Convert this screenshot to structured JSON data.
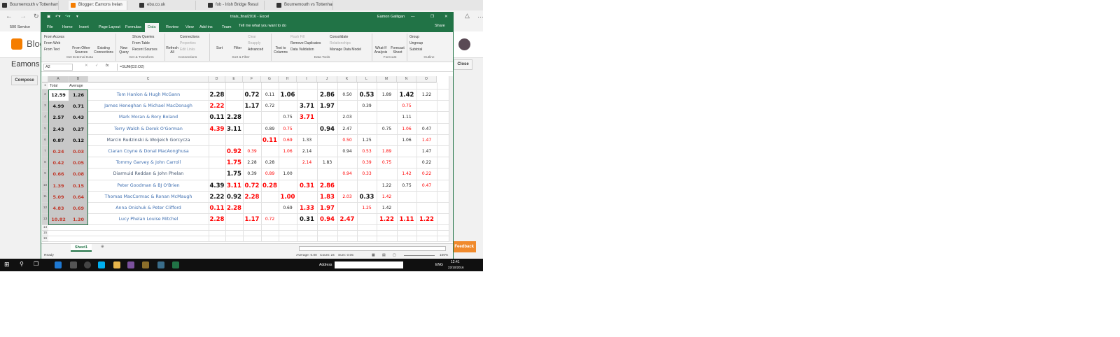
{
  "browser": {
    "tabs": [
      "Bournemouth v Tottenham",
      "Blogger: Eamons Irelan",
      "ebu.co.uk",
      "fob - Irish Bridge Resul",
      "Bournemouth vs Tottenham"
    ],
    "active_tab": 1,
    "favorites": "500 Service",
    "blog_title": "Blogger",
    "blog_name": "Eamons I",
    "compose": "Compose",
    "close": "Close",
    "feedback": "Feedback"
  },
  "excel": {
    "title": "trials_final2016  -  Excel",
    "user": "Eamon Galligan",
    "share": "Share",
    "tell_me": "Tell me what you want to do",
    "tabs": [
      "File",
      "Home",
      "Insert",
      "Page Layout",
      "Formulas",
      "Data",
      "Review",
      "View",
      "Add-ins",
      "Team"
    ],
    "active_tab": "Data",
    "ribbon": {
      "get_external": [
        "From Access",
        "From Web",
        "From Text"
      ],
      "from_other": "From Other Sources",
      "existing": "Existing Connections",
      "new_query": "New Query",
      "transform": [
        "Show Queries",
        "From Table",
        "Recent Sources"
      ],
      "refresh": "Refresh All",
      "connections": [
        "Connections",
        "Properties",
        "Edit Links"
      ],
      "sort": "Sort",
      "filter": "Filter",
      "filter_opts": [
        "Clear",
        "Reapply",
        "Advanced"
      ],
      "text_to_columns": "Text to Columns",
      "data_tools": [
        "Flash Fill",
        "Remove Duplicates",
        "Data Validation"
      ],
      "data_tools2": [
        "Consolidate",
        "Relationships",
        "Manage Data Model"
      ],
      "what_if": "What-If Analysis",
      "forecast_sheet": "Forecast Sheet",
      "outline": [
        "Group",
        "Ungroup",
        "Subtotal"
      ],
      "groups": [
        "Get External Data",
        "Get & Transform",
        "Connections",
        "Sort & Filter",
        "Data Tools",
        "Forecast",
        "Outline"
      ]
    },
    "name_box": "A2",
    "formula": "=SUM(D2:O2)",
    "columns": [
      "A",
      "B",
      "C",
      "D",
      "E",
      "F",
      "G",
      "H",
      "I",
      "J",
      "K",
      "L",
      "M",
      "N",
      "O"
    ],
    "header_row": {
      "A": "Total",
      "B": "Average"
    },
    "rows": [
      {
        "total": "12.59",
        "avg": "1.26",
        "name": "Tom Hanlon & Hugh McGann",
        "cells": [
          [
            "2.28",
            "B"
          ],
          null,
          [
            "0.72",
            "B"
          ],
          [
            "0.11",
            "b"
          ],
          [
            "1.06",
            "B"
          ],
          null,
          [
            "2.86",
            "B"
          ],
          [
            "0.50",
            "b"
          ],
          [
            "0.53",
            "B"
          ],
          [
            "1.89",
            "b"
          ],
          [
            "1.42",
            "B"
          ],
          [
            "1.22",
            "b"
          ]
        ]
      },
      {
        "total": "4.99",
        "avg": "0.71",
        "name": "James Heneghan & Michael MacDonagh",
        "cells": [
          [
            "2.22",
            "R"
          ],
          null,
          [
            "1.17",
            "B"
          ],
          [
            "0.72",
            "b"
          ],
          null,
          [
            "3.71",
            "B"
          ],
          [
            "1.97",
            "B"
          ],
          null,
          [
            "0.39",
            "b"
          ],
          null,
          [
            "0.75",
            "r"
          ],
          null
        ]
      },
      {
        "total": "2.57",
        "avg": "0.43",
        "name": "Mark Moran & Rory Boland",
        "cells": [
          [
            "0.11",
            "B"
          ],
          [
            "2.28",
            "B"
          ],
          null,
          null,
          [
            "0.75",
            "b"
          ],
          [
            "3.71",
            "R"
          ],
          null,
          [
            "2.03",
            "b"
          ],
          null,
          null,
          [
            "1.11",
            "b"
          ],
          null
        ]
      },
      {
        "total": "2.43",
        "avg": "0.27",
        "name": "Terry Walsh & Derek O'Gorman",
        "cells": [
          [
            "4.39",
            "R"
          ],
          [
            "3.11",
            "B"
          ],
          null,
          [
            "0.89",
            "b"
          ],
          [
            "0.75",
            "r"
          ],
          null,
          [
            "0.94",
            "B"
          ],
          [
            "2.47",
            "b"
          ],
          null,
          [
            "0.75",
            "b"
          ],
          [
            "1.06",
            "r"
          ],
          [
            "0.47",
            "b"
          ]
        ]
      },
      {
        "total": "0.87",
        "avg": "0.12",
        "name": "Marcin Rudzinski & Woijeich Gorcycza",
        "cells": [
          null,
          null,
          null,
          [
            "0.11",
            "R"
          ],
          [
            "0.69",
            "r"
          ],
          [
            "1.33",
            "b"
          ],
          null,
          [
            "0.50",
            "r"
          ],
          [
            "1.25",
            "b"
          ],
          null,
          [
            "1.06",
            "b"
          ],
          [
            "1.47",
            "r"
          ]
        ]
      },
      {
        "total": "0.24",
        "avg": "0.03",
        "name": "Ciaran Coyne & Donal MacAonghusa",
        "cells": [
          null,
          [
            "0.92",
            "R"
          ],
          [
            "0.39",
            "r"
          ],
          null,
          [
            "1.06",
            "r"
          ],
          [
            "2.14",
            "b"
          ],
          null,
          [
            "0.94",
            "b"
          ],
          [
            "0.53",
            "r"
          ],
          [
            "1.89",
            "r"
          ],
          null,
          [
            "1.47",
            "b"
          ]
        ]
      },
      {
        "total": "0.42",
        "avg": "0.05",
        "name": "Tommy Garvey & John Carroll",
        "cells": [
          null,
          [
            "1.75",
            "R"
          ],
          [
            "2.28",
            "b"
          ],
          [
            "0.28",
            "b"
          ],
          null,
          [
            "2.14",
            "r"
          ],
          [
            "1.83",
            "b"
          ],
          null,
          [
            "0.39",
            "r"
          ],
          [
            "0.75",
            "r"
          ],
          null,
          [
            "0.22",
            "b"
          ]
        ]
      },
      {
        "total": "0.66",
        "avg": "0.08",
        "name": "Diarmuid Reddan & John Phelan",
        "cells": [
          null,
          [
            "1.75",
            "B"
          ],
          [
            "0.39",
            "b"
          ],
          [
            "0.89",
            "r"
          ],
          [
            "1.00",
            "b"
          ],
          null,
          null,
          [
            "0.94",
            "r"
          ],
          [
            "0.33",
            "r"
          ],
          null,
          [
            "1.42",
            "r"
          ],
          [
            "0.22",
            "r"
          ]
        ]
      },
      {
        "total": "1.39",
        "avg": "0.15",
        "name": "Peter Goodman & BJ O'Brien",
        "cells": [
          [
            "4.39",
            "B"
          ],
          [
            "3.11",
            "R"
          ],
          [
            "0.72",
            "R"
          ],
          [
            "0.28",
            "R"
          ],
          null,
          [
            "0.31",
            "R"
          ],
          [
            "2.86",
            "R"
          ],
          null,
          null,
          [
            "1.22",
            "b"
          ],
          [
            "0.75",
            "b"
          ],
          [
            "0.47",
            "r"
          ]
        ]
      },
      {
        "total": "5.09",
        "avg": "0.64",
        "name": "Thomas MacCormac & Ronan McMaugh",
        "cells": [
          [
            "2.22",
            "B"
          ],
          [
            "0.92",
            "B"
          ],
          [
            "2.28",
            "R"
          ],
          null,
          [
            "1.00",
            "R"
          ],
          null,
          [
            "1.83",
            "R"
          ],
          [
            "2.03",
            "r"
          ],
          [
            "0.33",
            "B"
          ],
          [
            "1.42",
            "r"
          ],
          null,
          null
        ]
      },
      {
        "total": "4.83",
        "avg": "0.69",
        "name": "Anna Onishuk & Peter Clifford",
        "cells": [
          [
            "0.11",
            "R"
          ],
          [
            "2.28",
            "R"
          ],
          null,
          null,
          [
            "0.69",
            "b"
          ],
          [
            "1.33",
            "R"
          ],
          [
            "1.97",
            "R"
          ],
          null,
          [
            "1.25",
            "r"
          ],
          [
            "1.42",
            "b"
          ],
          null,
          null
        ]
      },
      {
        "total": "10.82",
        "avg": "1.20",
        "name": "Lucy Phelan Louise Mitchel",
        "cells": [
          [
            "2.28",
            "R"
          ],
          null,
          [
            "1.17",
            "R"
          ],
          [
            "0.72",
            "r"
          ],
          null,
          [
            "0.31",
            "B"
          ],
          [
            "0.94",
            "R"
          ],
          [
            "2.47",
            "R"
          ],
          null,
          [
            "1.22",
            "R"
          ],
          [
            "1.11",
            "R"
          ],
          [
            "1.22",
            "R"
          ]
        ]
      }
    ],
    "sheet_tab": "Sheet1",
    "status": {
      "ready": "Ready",
      "average": "Average: 0.00",
      "count": "Count: 24",
      "sum": "Sum: 0.05",
      "zoom": "100%"
    }
  },
  "taskbar": {
    "address_label": "Address",
    "time": "12:41",
    "date": "22/10/2016",
    "lang": "ENG"
  },
  "colors": {
    "excel_green": "#217346",
    "red": "#ff0000",
    "name_blue": "#3f6fb0",
    "dark_red": "#c0392b"
  }
}
